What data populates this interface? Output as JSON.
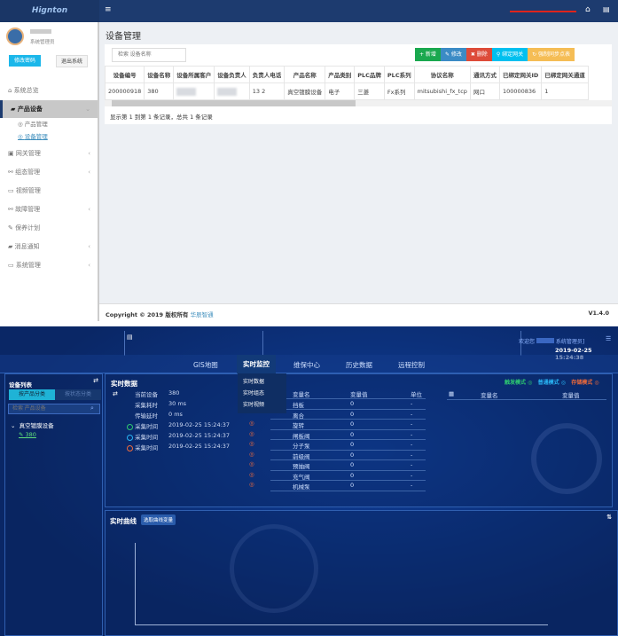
{
  "admin": {
    "logo": "Hignton",
    "user_role": "系统管理员",
    "change_password": "修改密码",
    "logout": "退出系统",
    "menu": [
      {
        "label": "系统总览",
        "icon": "home-icon",
        "chev": ""
      },
      {
        "label": "产品设备",
        "icon": "cube-icon",
        "chev": "⌄"
      },
      {
        "label": "网关管理",
        "icon": "gateway-icon",
        "chev": "‹"
      },
      {
        "label": "组态管理",
        "icon": "share-icon",
        "chev": "‹"
      },
      {
        "label": "视频管理",
        "icon": "monitor-icon",
        "chev": ""
      },
      {
        "label": "故障管理",
        "icon": "share-icon",
        "chev": "‹"
      },
      {
        "label": "保养计划",
        "icon": "wrench-icon",
        "chev": ""
      },
      {
        "label": "消息通知",
        "icon": "cube-icon",
        "chev": "‹"
      },
      {
        "label": "系统管理",
        "icon": "monitor-icon",
        "chev": "‹"
      }
    ],
    "submenu": [
      "产品管理",
      "设备管理"
    ],
    "page_title": "设备管理",
    "search_placeholder": "检索 设备名称",
    "toolbar": {
      "add": "+ 新增",
      "edit": "✎ 修改",
      "delete": "✖ 删除",
      "bind": "⚲ 绑定网关",
      "sync": "↻ 强制同步点表"
    },
    "colors": {
      "add": "#1aa84f",
      "edit": "#3b8bc5",
      "delete": "#dd4b39",
      "bind": "#00c0ef",
      "sync": "#f5bd55"
    },
    "columns": [
      "设备编号",
      "设备名称",
      "设备所属客户",
      "设备负责人",
      "负责人电话",
      "产品名称",
      "产品类别",
      "PLC品牌",
      "PLC系列",
      "协议名称",
      "通讯方式",
      "已绑定网关ID",
      "已绑定网关通道"
    ],
    "rows": [
      [
        "200000918",
        "380",
        "",
        "",
        "13 2",
        "真空镀膜设备",
        "电子",
        "三菱",
        "Fx系列",
        "mitsubishi_fx_tcp",
        "网口",
        "100000836",
        "1"
      ]
    ],
    "pager": "显示第 1 到第 1 条记录，总共 1 条记录",
    "copyright": "Copyright © 2019 版权所有",
    "company": "华辰智通",
    "version": "V1.4.0"
  },
  "monitor": {
    "welcome": "欢迎您",
    "user": "系统管理员]",
    "datetime": "2019-02-25 15:24:38",
    "tabs": [
      "GIS地图",
      "实时监控",
      "维保中心",
      "历史数据",
      "远程控制"
    ],
    "active_tab": "实时监控",
    "dropdown": [
      "实时数据",
      "实时组态",
      "实时视频"
    ],
    "device_list_title": "设备列表",
    "filter_tabs": [
      "按产品分类",
      "按状态分类"
    ],
    "search_placeholder": "检索 产品设备",
    "tree_group": "真空镀膜设备",
    "tree_item": "380",
    "realtime_title": "实时数据",
    "info": [
      [
        "当前设备",
        "380"
      ],
      [
        "采集耗时",
        "30 ms"
      ],
      [
        "传输延时",
        "0 ms"
      ]
    ],
    "collect": [
      {
        "label": "采集时间",
        "value": "2019-02-25 15:24:37",
        "color": "#2ecc71"
      },
      {
        "label": "采集时间",
        "value": "2019-02-25 15:24:37",
        "color": "#29b6f6"
      },
      {
        "label": "采集时间",
        "value": "2019-02-25 15:24:37",
        "color": "#f06a3a"
      }
    ],
    "var_headers": [
      "变量名",
      "变量值",
      "单位"
    ],
    "vars": [
      [
        "挡板",
        "0",
        "-"
      ],
      [
        "离合",
        "0",
        "-"
      ],
      [
        "旋转",
        "0",
        "-"
      ],
      [
        "闸板阀",
        "0",
        "-"
      ],
      [
        "分子泵",
        "0",
        "-"
      ],
      [
        "前级阀",
        "0",
        "-"
      ],
      [
        "预抽阀",
        "0",
        "-"
      ],
      [
        "充气阀",
        "0",
        "-"
      ],
      [
        "机械泵",
        "0",
        "-"
      ]
    ],
    "modes": [
      {
        "label": "触发模式",
        "color": "#2ecc71"
      },
      {
        "label": "普通模式",
        "color": "#29b6f6"
      },
      {
        "label": "存储模式",
        "color": "#f06a3a"
      }
    ],
    "right_headers": [
      "变量名",
      "变量值"
    ],
    "curve_title": "实时曲线",
    "curve_button": "选取曲线变量"
  }
}
